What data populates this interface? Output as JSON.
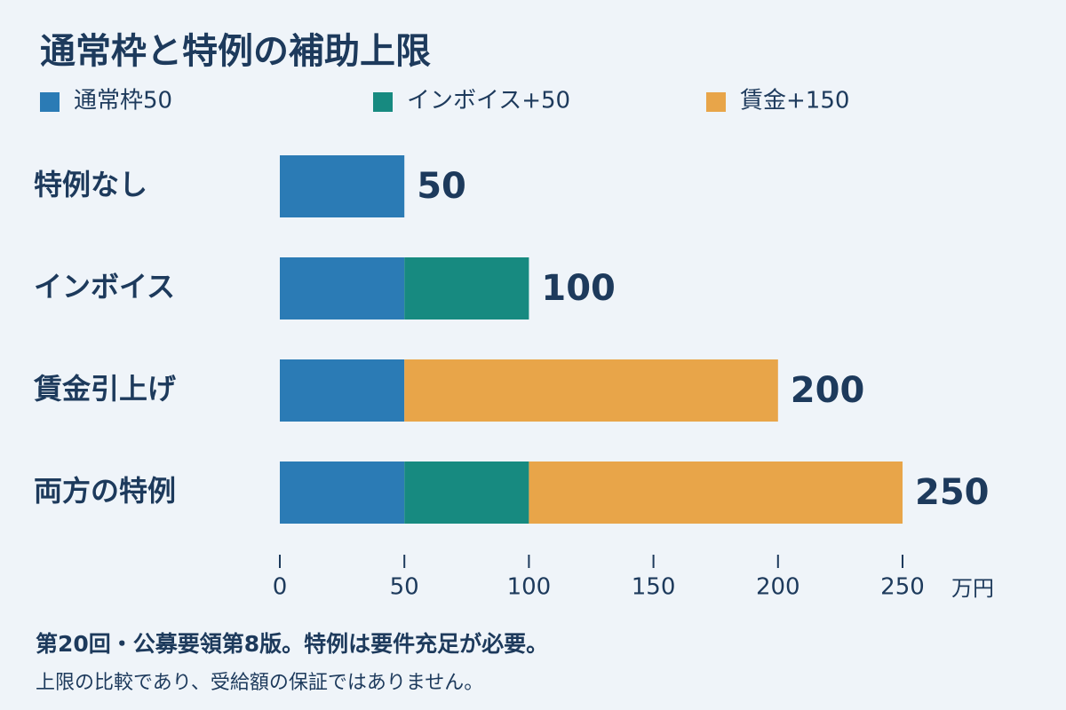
{
  "chart_data": {
    "type": "stacked-barh",
    "title": "通常枠と特例の補助上限",
    "categories": [
      "特例なし",
      "インボイス",
      "賃金引上げ",
      "両方の特例"
    ],
    "series": [
      {
        "name": "通常枠50",
        "color": "#2b7bb5",
        "values": [
          50,
          50,
          50,
          50
        ]
      },
      {
        "name": "インボイス+50",
        "color": "#178a80",
        "values": [
          null,
          50,
          null,
          50
        ]
      },
      {
        "name": "賃金+150",
        "color": "#e8a549",
        "values": [
          null,
          null,
          150,
          150
        ]
      }
    ],
    "totals": [
      50,
      100,
      200,
      250
    ],
    "xlim": [
      0,
      250
    ],
    "xticks": [
      0,
      50,
      100,
      150,
      200,
      250
    ],
    "x_unit": "万円",
    "footnote": [
      "第20回・公募要領第8版。特例は要件充足が必要。",
      "上限の比較であり、受給額の保証ではありません。"
    ]
  }
}
